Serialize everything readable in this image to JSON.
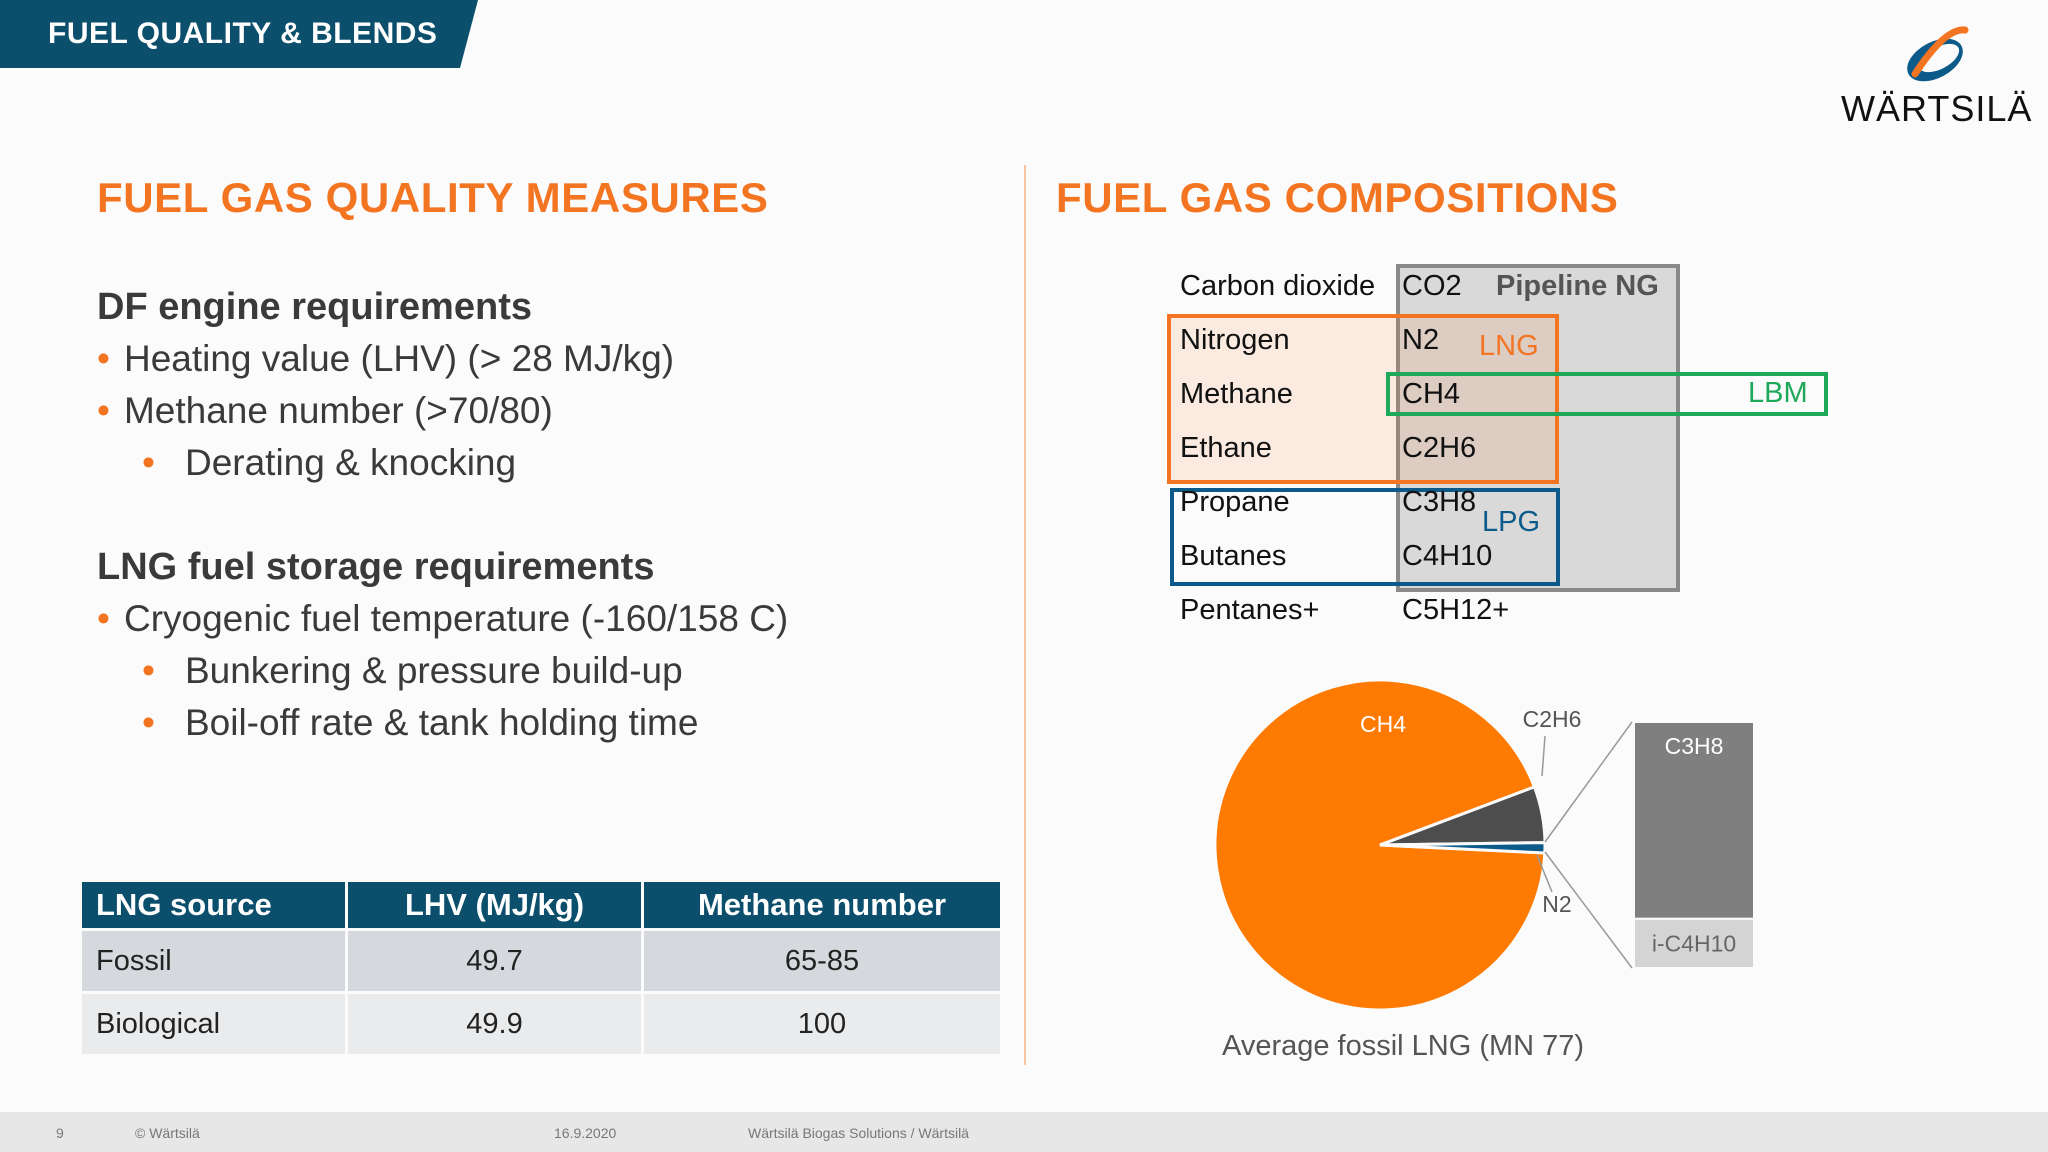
{
  "header": {
    "section_tab": "FUEL QUALITY & BLENDS",
    "logo_text": "WÄRTSILÄ"
  },
  "left": {
    "title": "FUEL GAS QUALITY MEASURES",
    "df_heading": "DF engine requirements",
    "df_bullets": [
      "Heating value (LHV) (> 28 MJ/kg)",
      "Methane number (>70/80)"
    ],
    "df_sub_bullets": [
      "Derating & knocking"
    ],
    "lng_heading": "LNG fuel storage requirements",
    "lng_bullets": [
      "Cryogenic fuel temperature (-160/158 C)"
    ],
    "lng_sub_bullets": [
      "Bunkering & pressure build-up",
      "Boil-off rate & tank holding time"
    ],
    "table": {
      "headers": [
        "LNG source",
        "LHV (MJ/kg)",
        "Methane number"
      ],
      "rows": [
        [
          "Fossil",
          "49.7",
          "65-85"
        ],
        [
          "Biological",
          "49.9",
          "100"
        ]
      ]
    }
  },
  "right": {
    "title": "FUEL GAS COMPOSITIONS",
    "compounds": [
      {
        "name": "Carbon dioxide",
        "formula": "CO2"
      },
      {
        "name": "Nitrogen",
        "formula": "N2"
      },
      {
        "name": "Methane",
        "formula": "CH4"
      },
      {
        "name": "Ethane",
        "formula": "C2H6"
      },
      {
        "name": "Propane",
        "formula": "C3H8"
      },
      {
        "name": "Butanes",
        "formula": "C4H10"
      },
      {
        "name": "Pentanes+",
        "formula": "C5H12+"
      }
    ],
    "groups": {
      "pipeline": "Pipeline NG",
      "lng": "LNG",
      "lbm": "LBM",
      "lpg": "LPG"
    },
    "colors": {
      "orange": "#f37421",
      "blue": "#0b5a8a",
      "green": "#1ea85a",
      "gray": "#8a8a8a"
    },
    "pie_caption": "Average fossil LNG (MN 77)"
  },
  "chart_data": {
    "type": "pie",
    "title": "Average fossil LNG (MN 77)",
    "slices": [
      {
        "label": "CH4",
        "color": "#ff7a00"
      },
      {
        "label": "C2H6",
        "color": "#4d4d4d"
      },
      {
        "label": "N2",
        "color": "#0b5a8a"
      }
    ],
    "values": [
      92.5,
      5.5,
      1.0,
      1.0
    ],
    "breakout_bar": [
      {
        "label": "C3H8",
        "color": "#7f7f7f"
      },
      {
        "label": "i-C4H10",
        "color": "#d4d4d4"
      }
    ],
    "breakout_values": [
      0.8,
      0.2
    ]
  },
  "footer": {
    "page": "9",
    "copyright": "© Wärtsilä",
    "date": "16.9.2020",
    "doc_title": "Wärtsilä Biogas Solutions / Wärtsilä"
  }
}
